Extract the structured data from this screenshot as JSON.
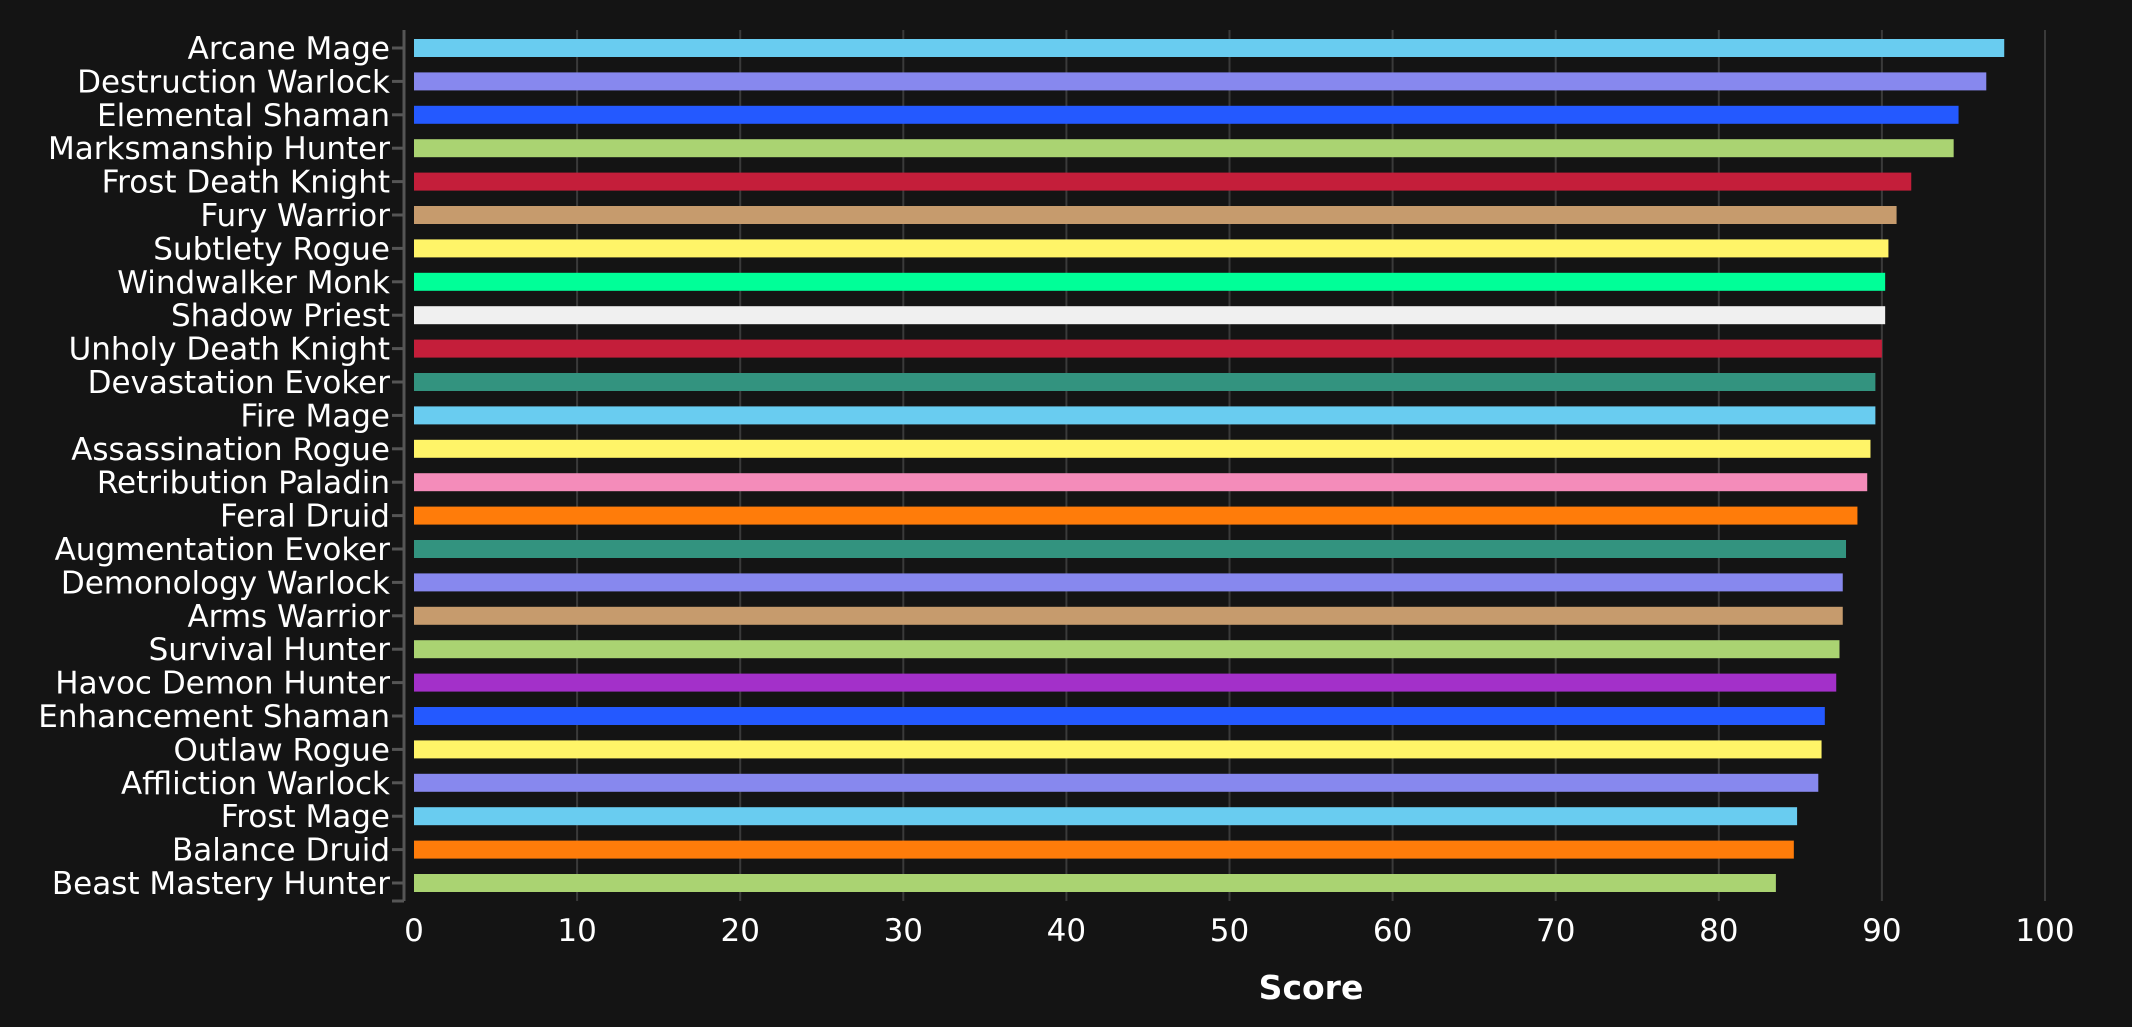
{
  "chart_data": {
    "type": "bar",
    "orientation": "horizontal",
    "title": "",
    "xlabel": "Score",
    "ylabel": "",
    "xlim": [
      0,
      100
    ],
    "xticks": [
      "0",
      "10",
      "20",
      "30",
      "40",
      "50",
      "60",
      "70",
      "80",
      "90",
      "100"
    ],
    "grid": true,
    "legend": "none",
    "categories": [
      "Arcane Mage",
      "Destruction Warlock",
      "Elemental Shaman",
      "Marksmanship Hunter",
      "Frost Death Knight",
      "Fury Warrior",
      "Subtlety Rogue",
      "Windwalker Monk",
      "Shadow Priest",
      "Unholy Death Knight",
      "Devastation Evoker",
      "Fire Mage",
      "Assassination Rogue",
      "Retribution Paladin",
      "Feral Druid",
      "Augmentation Evoker",
      "Demonology Warlock",
      "Arms Warrior",
      "Survival Hunter",
      "Havoc Demon Hunter",
      "Enhancement Shaman",
      "Outlaw Rogue",
      "Affliction Warlock",
      "Frost Mage",
      "Balance Druid",
      "Beast Mastery Hunter"
    ],
    "values": [
      97.5,
      96.4,
      94.7,
      94.4,
      91.8,
      90.9,
      90.4,
      90.2,
      90.2,
      90.0,
      89.6,
      89.6,
      89.3,
      89.1,
      88.5,
      87.8,
      87.6,
      87.6,
      87.4,
      87.2,
      86.5,
      86.3,
      86.1,
      84.8,
      84.6,
      83.5
    ],
    "colors": [
      "#69CCF0",
      "#8788EE",
      "#2459FF",
      "#AAD372",
      "#C41E3A",
      "#C69B6D",
      "#FFF468",
      "#00FF98",
      "#F0F0F0",
      "#C41E3A",
      "#33937F",
      "#69CCF0",
      "#FFF468",
      "#F48CBA",
      "#FF7C0A",
      "#33937F",
      "#8788EE",
      "#C69B6D",
      "#AAD372",
      "#A330C9",
      "#2459FF",
      "#FFF468",
      "#8788EE",
      "#69CCF0",
      "#FF7C0A",
      "#AAD372"
    ]
  }
}
